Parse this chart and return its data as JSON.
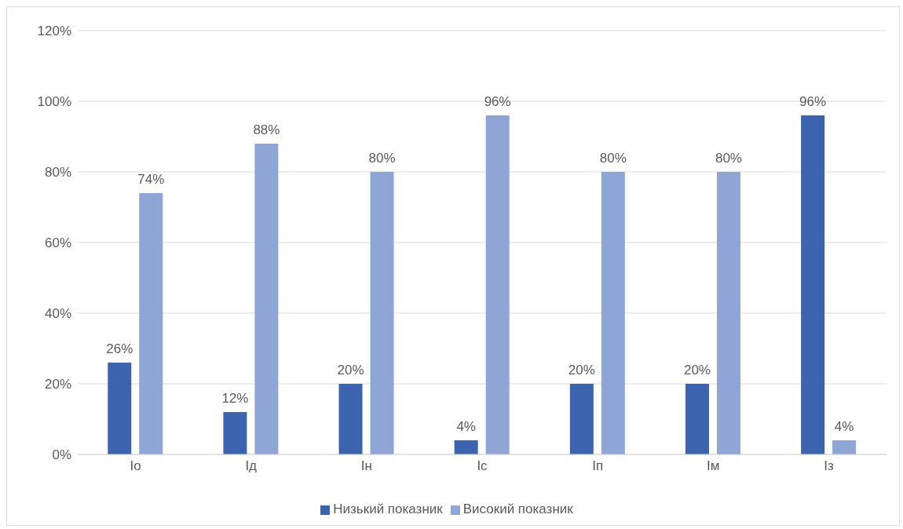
{
  "chart_data": {
    "type": "bar",
    "categories": [
      "Іо",
      "Ід",
      "Ін",
      "Іс",
      "Іп",
      "Ім",
      "Із"
    ],
    "series": [
      {
        "name": "Низький показник",
        "color": "#3c64ae",
        "values": [
          26,
          12,
          20,
          4,
          20,
          20,
          96
        ],
        "value_labels": [
          "26%",
          "12%",
          "20%",
          "4%",
          "20%",
          "20%",
          "96%"
        ]
      },
      {
        "name": "Високий показник",
        "color": "#8fa5d6",
        "values": [
          74,
          88,
          80,
          96,
          80,
          80,
          4
        ],
        "value_labels": [
          "74%",
          "88%",
          "80%",
          "96%",
          "80%",
          "80%",
          "4%"
        ]
      }
    ],
    "ylim": [
      0,
      120
    ],
    "yticks": [
      {
        "value": 0,
        "label": "0%"
      },
      {
        "value": 20,
        "label": "20%"
      },
      {
        "value": 40,
        "label": "40%"
      },
      {
        "value": 60,
        "label": "60%"
      },
      {
        "value": 80,
        "label": "80%"
      },
      {
        "value": 100,
        "label": "100%"
      },
      {
        "value": 120,
        "label": "120%"
      }
    ],
    "grid": "y",
    "legend": "bottom"
  }
}
